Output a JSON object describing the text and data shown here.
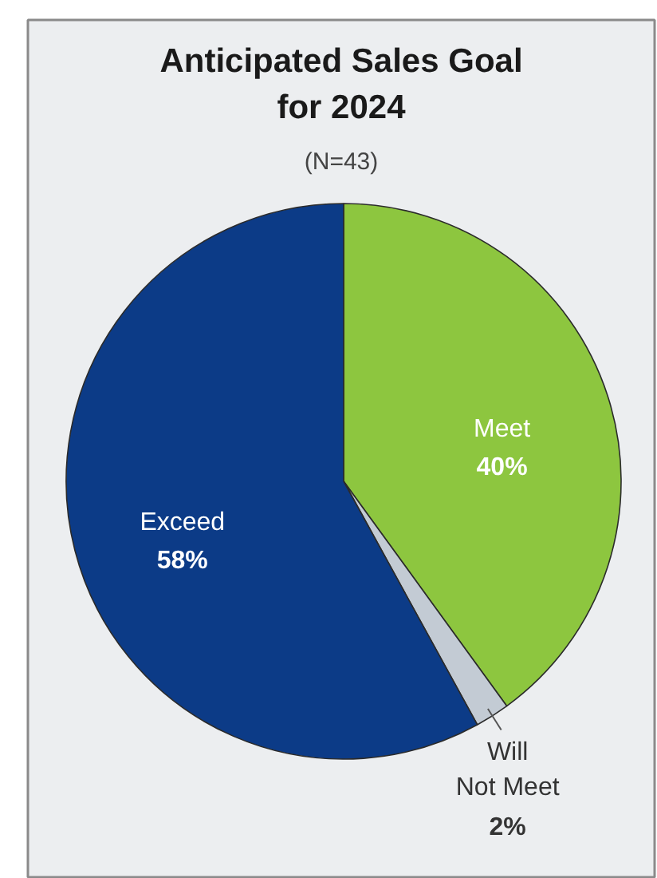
{
  "chart_data": {
    "type": "pie",
    "title": "Anticipated Sales Goal for 2024",
    "subtitle": "(N=43)",
    "categories": [
      "Meet",
      "Will Not Meet",
      "Exceed"
    ],
    "values": [
      40,
      2,
      58
    ],
    "colors": [
      "#8dc63f",
      "#c3cbd4",
      "#0c3b87"
    ],
    "value_labels": [
      "40%",
      "2%",
      "58%"
    ]
  }
}
